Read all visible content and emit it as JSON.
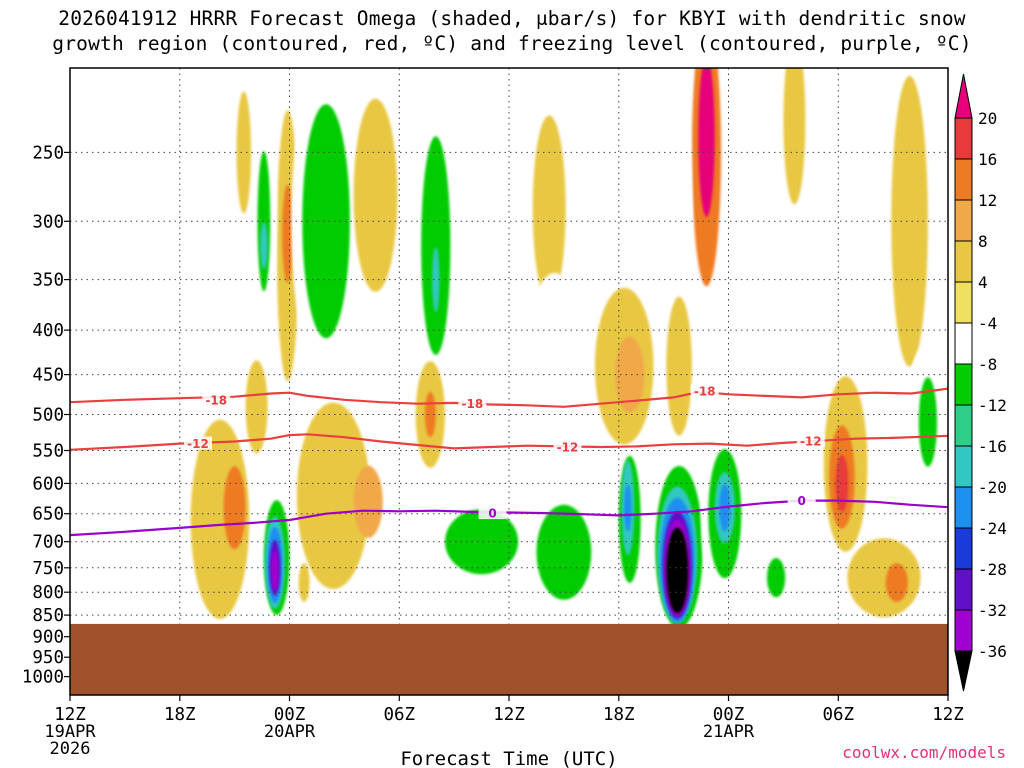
{
  "title_line1": "2026041912 HRRR Forecast Omega (shaded, μbar/s) for KBYI with dendritic snow",
  "title_line2": "growth region (contoured, red, ºC) and freezing level (contoured, purple, ºC)",
  "credit": "coolwx.com/models",
  "chart_data": {
    "type": "heatmap",
    "title": "2026041912 HRRR Forecast Omega (shaded, μbar/s) for KBYI",
    "xlabel": "Forecast Time (UTC)",
    "ylabel": "",
    "x_range_hours": [
      0,
      48
    ],
    "y_range_hpa": [
      200,
      1050
    ],
    "y_scale": "log",
    "x_ticks": [
      {
        "hour": 0,
        "label": "12Z",
        "sub": [
          "19APR",
          "2026"
        ]
      },
      {
        "hour": 6,
        "label": "18Z",
        "sub": []
      },
      {
        "hour": 12,
        "label": "00Z",
        "sub": [
          "20APR"
        ]
      },
      {
        "hour": 18,
        "label": "06Z",
        "sub": []
      },
      {
        "hour": 24,
        "label": "12Z",
        "sub": []
      },
      {
        "hour": 30,
        "label": "18Z",
        "sub": []
      },
      {
        "hour": 36,
        "label": "00Z",
        "sub": [
          "21APR"
        ]
      },
      {
        "hour": 42,
        "label": "06Z",
        "sub": []
      },
      {
        "hour": 48,
        "label": "12Z",
        "sub": []
      }
    ],
    "y_ticks": [
      250,
      300,
      350,
      400,
      450,
      500,
      550,
      600,
      650,
      700,
      750,
      800,
      850,
      900,
      950,
      1000
    ],
    "grid": true,
    "legend_position": "right",
    "colorbar_levels": [
      20,
      16,
      12,
      8,
      4,
      -4,
      -8,
      -12,
      -16,
      -20,
      -24,
      -28,
      -32,
      -36
    ],
    "colorbar_colors": [
      "#e6007a",
      "#e83a3a",
      "#ee7a22",
      "#f0a848",
      "#e8c842",
      "#f0e060",
      "#ffffff",
      "#00cc00",
      "#2ecf88",
      "#30c8c0",
      "#1a90f0",
      "#1a3adc",
      "#6010c8",
      "#a000d0",
      "#a8a8a8",
      "#000000"
    ],
    "surface_pressure_hpa": 870,
    "surface_color": "#a0522d",
    "snow_growth_contours": [
      {
        "label": "-18",
        "color": "#e84040",
        "x": [
          0,
          3,
          6,
          9,
          11,
          12,
          13,
          15,
          17,
          19,
          21,
          23,
          25,
          27,
          29,
          31,
          33,
          34,
          35,
          36,
          38,
          40,
          42,
          44,
          46,
          48
        ],
        "y": [
          484,
          481,
          479,
          477,
          473,
          472,
          476,
          481,
          484,
          486,
          485,
          487,
          488,
          490,
          486,
          482,
          478,
          473,
          472,
          474,
          476,
          478,
          474,
          472,
          473,
          467
        ]
      },
      {
        "label": "-12",
        "color": "#e84040",
        "x": [
          0,
          3,
          6,
          9,
          11,
          12,
          13,
          15,
          17,
          19,
          21,
          23,
          25,
          27,
          29,
          31,
          33,
          35,
          37,
          39,
          41,
          43,
          45,
          48
        ],
        "y": [
          549,
          545,
          540,
          537,
          533,
          528,
          527,
          531,
          537,
          542,
          547,
          545,
          543,
          544,
          545,
          544,
          541,
          540,
          543,
          539,
          536,
          533,
          532,
          529
        ]
      }
    ],
    "freezing_level_contour": {
      "label": "0",
      "color": "#9a00c8",
      "x": [
        0,
        3,
        6,
        8,
        10,
        12,
        14,
        16,
        18,
        20,
        22,
        24,
        26,
        28,
        30,
        32,
        34,
        36,
        38,
        40,
        42,
        44,
        46,
        48
      ],
      "y": [
        688,
        682,
        675,
        670,
        666,
        661,
        650,
        645,
        646,
        645,
        647,
        648,
        649,
        651,
        653,
        650,
        646,
        638,
        632,
        628,
        628,
        630,
        635,
        639
      ]
    },
    "contour_labels": [
      {
        "text": "-18",
        "x": 8,
        "y": 481,
        "color": "#e84040"
      },
      {
        "text": "-18",
        "x": 22,
        "y": 486,
        "color": "#e84040"
      },
      {
        "text": "-18",
        "x": 34.7,
        "y": 470,
        "color": "#e84040"
      },
      {
        "text": "-12",
        "x": 7,
        "y": 540,
        "color": "#e84040"
      },
      {
        "text": "-12",
        "x": 27.2,
        "y": 545,
        "color": "#e84040"
      },
      {
        "text": "-12",
        "x": 40.5,
        "y": 536,
        "color": "#e84040"
      },
      {
        "text": "0",
        "x": 23.1,
        "y": 649,
        "color": "#9a00c8"
      },
      {
        "text": "0",
        "x": 40,
        "y": 628,
        "color": "#9a00c8"
      }
    ],
    "omega_blobs": [
      {
        "v": 6,
        "x": 26.2,
        "y": 290,
        "rx": 0.9,
        "ry": 70
      },
      {
        "v": 14,
        "x": 34.8,
        "y": 250,
        "rx": 0.8,
        "ry": 85
      },
      {
        "v": 20,
        "x": 34.8,
        "y": 240,
        "rx": 0.45,
        "ry": 50
      },
      {
        "v": 6,
        "x": 39.6,
        "y": 230,
        "rx": 0.6,
        "ry": 50
      },
      {
        "v": 6,
        "x": 45.9,
        "y": 300,
        "rx": 1.0,
        "ry": 110
      },
      {
        "v": 6,
        "x": 9.5,
        "y": 250,
        "rx": 0.4,
        "ry": 40
      },
      {
        "v": 6,
        "x": 11.9,
        "y": 320,
        "rx": 0.6,
        "ry": 110
      },
      {
        "v": 12,
        "x": 11.9,
        "y": 310,
        "rx": 0.3,
        "ry": 40
      },
      {
        "v": -6,
        "x": 10.7,
        "y": 300,
        "rx": 0.6,
        "ry": 90
      },
      {
        "v": -12,
        "x": 10.6,
        "y": 300,
        "rx": 0.35,
        "ry": 55
      },
      {
        "v": -18,
        "x": 10.6,
        "y": 320,
        "rx": 0.2,
        "ry": 20
      },
      {
        "v": -6,
        "x": 14.3,
        "y": 300,
        "rx": 2.2,
        "ry": 130
      },
      {
        "v": -12,
        "x": 14.0,
        "y": 300,
        "rx": 1.3,
        "ry": 90
      },
      {
        "v": -6,
        "x": 20.3,
        "y": 320,
        "rx": 1.6,
        "ry": 140
      },
      {
        "v": -12,
        "x": 20.0,
        "y": 320,
        "rx": 0.8,
        "ry": 90
      },
      {
        "v": -18,
        "x": 20.0,
        "y": 350,
        "rx": 0.2,
        "ry": 30
      },
      {
        "v": -6,
        "x": 26.5,
        "y": 400,
        "rx": 1.3,
        "ry": 60
      },
      {
        "v": -6,
        "x": 29.8,
        "y": 280,
        "rx": 1.0,
        "ry": 110
      },
      {
        "v": -6,
        "x": 33.3,
        "y": 290,
        "rx": 0.7,
        "ry": 100
      },
      {
        "v": -6,
        "x": 37.2,
        "y": 270,
        "rx": 0.7,
        "ry": 80
      },
      {
        "v": -6,
        "x": 43.2,
        "y": 240,
        "rx": 0.9,
        "ry": 60
      },
      {
        "v": 6,
        "x": 16.7,
        "y": 280,
        "rx": 1.2,
        "ry": 70
      },
      {
        "v": 6,
        "x": 19.7,
        "y": 500,
        "rx": 0.8,
        "ry": 70
      },
      {
        "v": 12,
        "x": 19.7,
        "y": 500,
        "rx": 0.3,
        "ry": 30
      },
      {
        "v": 6,
        "x": 33.3,
        "y": 440,
        "rx": 0.7,
        "ry": 80
      },
      {
        "v": 6,
        "x": 30.3,
        "y": 440,
        "rx": 1.6,
        "ry": 90
      },
      {
        "v": 10,
        "x": 30.6,
        "y": 450,
        "rx": 0.8,
        "ry": 45
      },
      {
        "v": 6,
        "x": 42.4,
        "y": 570,
        "rx": 1.2,
        "ry": 130
      },
      {
        "v": 12,
        "x": 42.2,
        "y": 590,
        "rx": 0.7,
        "ry": 80
      },
      {
        "v": 18,
        "x": 42.2,
        "y": 600,
        "rx": 0.35,
        "ry": 45
      },
      {
        "v": 6,
        "x": 10.2,
        "y": 490,
        "rx": 0.6,
        "ry": 60
      },
      {
        "v": 6,
        "x": 8.2,
        "y": 660,
        "rx": 1.6,
        "ry": 170
      },
      {
        "v": 12,
        "x": 9.0,
        "y": 640,
        "rx": 0.6,
        "ry": 70
      },
      {
        "v": 6,
        "x": 14.4,
        "y": 620,
        "rx": 2.0,
        "ry": 150
      },
      {
        "v": 10,
        "x": 16.3,
        "y": 630,
        "rx": 0.8,
        "ry": 60
      },
      {
        "v": 6,
        "x": 44.5,
        "y": 770,
        "rx": 2.0,
        "ry": 80
      },
      {
        "v": 12,
        "x": 45.2,
        "y": 780,
        "rx": 0.6,
        "ry": 40
      },
      {
        "v": 6,
        "x": 22.1,
        "y": 800,
        "rx": 0.4,
        "ry": 40
      },
      {
        "v": 6,
        "x": 12.8,
        "y": 780,
        "rx": 0.3,
        "ry": 40
      },
      {
        "v": -6,
        "x": 11.4,
        "y": 730,
        "rx": 0.9,
        "ry": 130
      },
      {
        "v": -12,
        "x": 11.3,
        "y": 730,
        "rx": 0.7,
        "ry": 110
      },
      {
        "v": -18,
        "x": 11.2,
        "y": 740,
        "rx": 0.55,
        "ry": 90
      },
      {
        "v": -24,
        "x": 11.2,
        "y": 745,
        "rx": 0.42,
        "ry": 75
      },
      {
        "v": -30,
        "x": 11.2,
        "y": 750,
        "rx": 0.3,
        "ry": 55
      },
      {
        "v": -34,
        "x": 11.2,
        "y": 755,
        "rx": 0.2,
        "ry": 40
      },
      {
        "v": -6,
        "x": 23.0,
        "y": 730,
        "rx": 3.8,
        "ry": 120
      },
      {
        "v": -12,
        "x": 22.5,
        "y": 700,
        "rx": 2.0,
        "ry": 60
      },
      {
        "v": -12,
        "x": 27.0,
        "y": 720,
        "rx": 1.5,
        "ry": 90
      },
      {
        "v": -6,
        "x": 17.7,
        "y": 790,
        "rx": 0.6,
        "ry": 30
      },
      {
        "v": -6,
        "x": 30.6,
        "y": 690,
        "rx": 1.0,
        "ry": 150
      },
      {
        "v": -12,
        "x": 30.6,
        "y": 660,
        "rx": 0.6,
        "ry": 110
      },
      {
        "v": -18,
        "x": 30.5,
        "y": 640,
        "rx": 0.35,
        "ry": 80
      },
      {
        "v": -24,
        "x": 30.5,
        "y": 640,
        "rx": 0.2,
        "ry": 40
      },
      {
        "v": -6,
        "x": 33.4,
        "y": 700,
        "rx": 1.6,
        "ry": 170
      },
      {
        "v": -12,
        "x": 33.3,
        "y": 710,
        "rx": 1.3,
        "ry": 150
      },
      {
        "v": -18,
        "x": 33.2,
        "y": 725,
        "rx": 1.1,
        "ry": 130
      },
      {
        "v": -24,
        "x": 33.2,
        "y": 735,
        "rx": 0.95,
        "ry": 120
      },
      {
        "v": -30,
        "x": 33.2,
        "y": 745,
        "rx": 0.8,
        "ry": 105
      },
      {
        "v": -34,
        "x": 33.2,
        "y": 750,
        "rx": 0.7,
        "ry": 95
      },
      {
        "v": -40,
        "x": 33.2,
        "y": 755,
        "rx": 0.6,
        "ry": 85
      },
      {
        "v": -6,
        "x": 35.8,
        "y": 660,
        "rx": 1.3,
        "ry": 160
      },
      {
        "v": -12,
        "x": 35.8,
        "y": 650,
        "rx": 0.9,
        "ry": 110
      },
      {
        "v": -18,
        "x": 35.8,
        "y": 640,
        "rx": 0.55,
        "ry": 60
      },
      {
        "v": -24,
        "x": 35.8,
        "y": 640,
        "rx": 0.3,
        "ry": 40
      },
      {
        "v": -6,
        "x": 38.6,
        "y": 760,
        "rx": 1.0,
        "ry": 80
      },
      {
        "v": -12,
        "x": 38.6,
        "y": 770,
        "rx": 0.5,
        "ry": 40
      },
      {
        "v": -6,
        "x": 46.7,
        "y": 510,
        "rx": 1.0,
        "ry": 100
      },
      {
        "v": -12,
        "x": 46.9,
        "y": 510,
        "rx": 0.5,
        "ry": 60
      }
    ]
  }
}
